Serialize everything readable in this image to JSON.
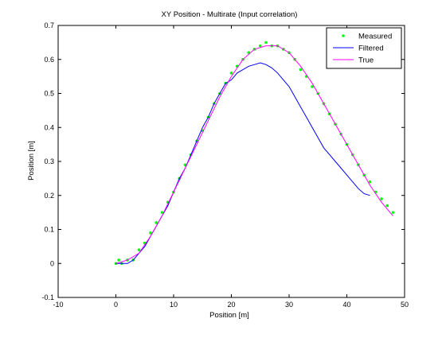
{
  "chart_data": {
    "type": "line",
    "title": "XY Position - Multirate (Input correlation)",
    "xlabel": "Position [m]",
    "ylabel": "Position [m]",
    "xlim": [
      -10,
      50
    ],
    "ylim": [
      -0.1,
      0.7
    ],
    "xticks": [
      -10,
      0,
      10,
      20,
      30,
      40,
      50
    ],
    "yticks": [
      -0.1,
      0,
      0.1,
      0.2,
      0.3,
      0.4,
      0.5,
      0.6,
      0.7
    ],
    "xtick_labels": [
      "-10",
      "0",
      "10",
      "20",
      "30",
      "40",
      "50"
    ],
    "ytick_labels": [
      "-0.1",
      "0",
      "0.1",
      "0.2",
      "0.3",
      "0.4",
      "0.5",
      "0.6",
      "0.7"
    ],
    "grid": true,
    "legend": "top-right",
    "series": [
      {
        "name": "Measured",
        "style": "scatter",
        "color": "#00ff00",
        "x": [
          0,
          0.5,
          1,
          2,
          3,
          4,
          5,
          6,
          7,
          8,
          9,
          10,
          11,
          12,
          13,
          14,
          15,
          16,
          17,
          18,
          19,
          20,
          21,
          22,
          23,
          24,
          25,
          26,
          27,
          28,
          29,
          30,
          31,
          32,
          33,
          34,
          35,
          36,
          37,
          38,
          39,
          40,
          41,
          42,
          43,
          44,
          45,
          46,
          47,
          48
        ],
        "y": [
          0.0,
          0.01,
          0.0,
          0.01,
          0.01,
          0.04,
          0.06,
          0.09,
          0.12,
          0.15,
          0.18,
          0.21,
          0.25,
          0.29,
          0.32,
          0.36,
          0.39,
          0.43,
          0.47,
          0.5,
          0.53,
          0.56,
          0.58,
          0.6,
          0.62,
          0.63,
          0.64,
          0.65,
          0.64,
          0.64,
          0.63,
          0.62,
          0.6,
          0.57,
          0.55,
          0.52,
          0.5,
          0.47,
          0.44,
          0.41,
          0.38,
          0.35,
          0.32,
          0.29,
          0.26,
          0.24,
          0.21,
          0.19,
          0.17,
          0.15
        ]
      },
      {
        "name": "Filtered",
        "style": "line",
        "color": "#0000ff",
        "x": [
          0,
          1,
          2,
          3,
          4,
          5,
          6,
          7,
          8,
          9,
          10,
          11,
          12,
          13,
          14,
          15,
          16,
          17,
          18,
          19,
          20,
          21,
          22,
          23,
          24,
          25,
          26,
          27,
          28,
          29,
          30,
          31,
          32,
          33,
          34,
          35,
          36,
          37,
          38,
          39,
          40,
          41,
          42,
          43,
          44
        ],
        "y": [
          0.0,
          0.0,
          0.0,
          0.01,
          0.03,
          0.05,
          0.08,
          0.11,
          0.14,
          0.17,
          0.21,
          0.25,
          0.28,
          0.32,
          0.36,
          0.4,
          0.43,
          0.47,
          0.5,
          0.53,
          0.54,
          0.56,
          0.57,
          0.58,
          0.585,
          0.59,
          0.585,
          0.575,
          0.56,
          0.54,
          0.52,
          0.49,
          0.46,
          0.43,
          0.4,
          0.37,
          0.34,
          0.32,
          0.3,
          0.28,
          0.26,
          0.24,
          0.22,
          0.205,
          0.2
        ]
      },
      {
        "name": "True",
        "style": "line",
        "color": "#ff00ff",
        "x": [
          0,
          2,
          4,
          6,
          8,
          10,
          12,
          14,
          16,
          18,
          20,
          22,
          24,
          26,
          28,
          30,
          32,
          34,
          36,
          38,
          40,
          42,
          44,
          46,
          48
        ],
        "y": [
          0.0,
          0.01,
          0.03,
          0.08,
          0.14,
          0.21,
          0.28,
          0.35,
          0.42,
          0.49,
          0.55,
          0.6,
          0.63,
          0.64,
          0.64,
          0.62,
          0.58,
          0.53,
          0.47,
          0.41,
          0.35,
          0.29,
          0.23,
          0.18,
          0.14
        ]
      }
    ]
  }
}
